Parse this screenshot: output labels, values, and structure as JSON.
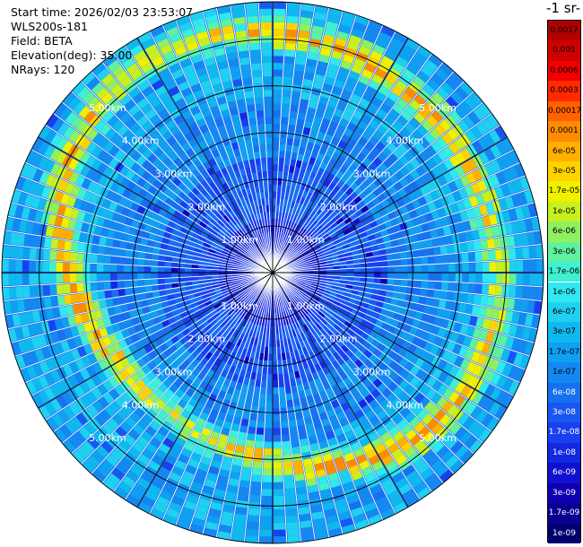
{
  "header": {
    "start_time": "Start time: 2026/02/03 23:53:07",
    "instrument": "WLS200s-181",
    "field": "Field: BETA",
    "elevation": "Elevation(deg): 35.00",
    "nrays": "NRays: 120"
  },
  "colorbar": {
    "unit_label": "-1 sr-",
    "labels": [
      "0.0017",
      "0.001",
      "0.0006",
      "0.0003",
      "0.00017",
      "0.0001",
      "6e-05",
      "3e-05",
      "1.7e-05",
      "1e-05",
      "6e-06",
      "3e-06",
      "1.7e-06",
      "1e-06",
      "6e-07",
      "3e-07",
      "1.7e-07",
      "1e-07",
      "6e-08",
      "3e-08",
      "1.7e-08",
      "1e-08",
      "6e-09",
      "3e-09",
      "1.7e-09",
      "1e-09"
    ],
    "colors": [
      "#b00000",
      "#d00000",
      "#f00000",
      "#ff2a00",
      "#ff6000",
      "#ff8c00",
      "#ffb000",
      "#ffd200",
      "#f0f000",
      "#c8f020",
      "#90f060",
      "#60f0a0",
      "#40f0d0",
      "#30e8f0",
      "#20d0f0",
      "#10b8f0",
      "#10a0f0",
      "#1488f0",
      "#1870f0",
      "#1858f0",
      "#1840f0",
      "#1428e0",
      "#1010d0",
      "#1000b0",
      "#0a0090",
      "#000070"
    ]
  },
  "chart_data": {
    "type": "heatmap",
    "projection": "polar (PPI scan)",
    "field": "BETA",
    "nrays": 120,
    "range_ring_labels": [
      "1.00km",
      "2.00km",
      "3.00km",
      "4.00km",
      "5.00km"
    ],
    "range_rings_km": [
      1,
      2,
      3,
      4,
      5
    ],
    "max_range_km": 5.8,
    "color_scale": "log",
    "value_range": [
      1e-09,
      0.0017
    ],
    "dominant_values": "mostly 1e-08 to 6e-08 inside, rising toward 1.7e-07 near 5 km",
    "high_band": {
      "description": "ring of elevated backscatter near 4-5.3 km range",
      "peak_value": 6e-05
    }
  }
}
